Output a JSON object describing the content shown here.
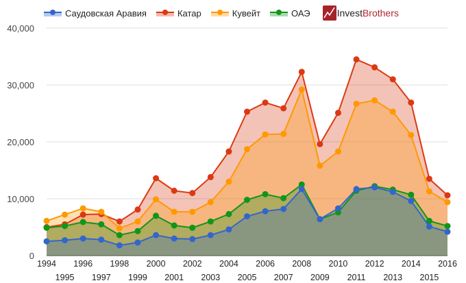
{
  "chart_data": {
    "type": "area",
    "title": "",
    "xlabel": "",
    "ylabel": "",
    "ylim": [
      0,
      40000
    ],
    "yticks": [
      "0",
      "10,000",
      "20,000",
      "30,000",
      "40,000"
    ],
    "ytick_values": [
      0,
      10000,
      20000,
      30000,
      40000
    ],
    "grid": true,
    "legend_position": "top",
    "x": [
      1994,
      1995,
      1996,
      1997,
      1998,
      1999,
      2000,
      2001,
      2002,
      2003,
      2004,
      2005,
      2006,
      2007,
      2008,
      2009,
      2010,
      2011,
      2012,
      2013,
      2014,
      2015,
      2016
    ],
    "series": [
      {
        "name": "Катар",
        "color": "#dc3912",
        "values": [
          5000,
          5500,
          7200,
          7300,
          6000,
          8100,
          13600,
          11400,
          11000,
          13800,
          18300,
          25300,
          26900,
          25900,
          32300,
          19600,
          25100,
          34500,
          33100,
          31000,
          26900,
          13500,
          10600
        ]
      },
      {
        "name": "Кувейт",
        "color": "#ff9900",
        "values": [
          6100,
          7200,
          8300,
          7700,
          4800,
          6000,
          9900,
          7700,
          7700,
          9400,
          13000,
          18700,
          21300,
          21400,
          29200,
          15800,
          18300,
          26700,
          27300,
          25300,
          21200,
          11300,
          9400
        ]
      },
      {
        "name": "ОАЭ",
        "color": "#109618",
        "values": [
          4900,
          5200,
          5900,
          5500,
          3600,
          4300,
          7000,
          5300,
          4900,
          6000,
          7300,
          9800,
          10800,
          10100,
          12500,
          6400,
          7600,
          11400,
          12200,
          11600,
          10700,
          6100,
          5200
        ]
      },
      {
        "name": "Саудовская Аравия",
        "color": "#3366cc",
        "values": [
          2500,
          2700,
          3000,
          2800,
          1800,
          2300,
          3600,
          3000,
          2900,
          3600,
          4600,
          6900,
          7800,
          8200,
          11700,
          6400,
          8300,
          11700,
          12000,
          11200,
          9600,
          5100,
          4200
        ]
      }
    ]
  },
  "legend": [
    {
      "label": "Саудовская Аравия",
      "color": "#3366cc"
    },
    {
      "label": "Катар",
      "color": "#dc3912"
    },
    {
      "label": "Кувейт",
      "color": "#ff9900"
    },
    {
      "label": "ОАЭ",
      "color": "#109618"
    }
  ],
  "logo": {
    "part1": "Invest",
    "part2": "Brothers"
  }
}
